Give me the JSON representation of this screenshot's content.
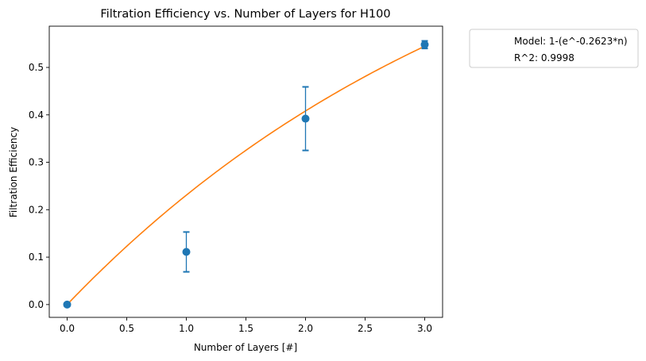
{
  "chart_data": {
    "type": "scatter",
    "title": "Filtration Efficiency vs. Number of Layers for H100",
    "xlabel": "Number of Layers [#]",
    "ylabel": "Filtration Efficiency",
    "xlim": [
      -0.15,
      3.15
    ],
    "ylim": [
      -0.027,
      0.587
    ],
    "x_ticks": [
      "0.0",
      "0.5",
      "1.0",
      "1.5",
      "2.0",
      "2.5",
      "3.0"
    ],
    "y_ticks": [
      "0.0",
      "0.1",
      "0.2",
      "0.3",
      "0.4",
      "0.5"
    ],
    "grid": false,
    "legend_position": "outside-top-right",
    "legend_entries": [
      "Model: 1-(e^-0.2623*n)",
      "R^2: 0.9998"
    ],
    "series": [
      {
        "kind": "errorbar-points",
        "color": "#1f77b4",
        "points": [
          {
            "x": 0,
            "y": 0.0,
            "err": 0.0
          },
          {
            "x": 1,
            "y": 0.111,
            "err": 0.042
          },
          {
            "x": 2,
            "y": 0.392,
            "err": 0.067
          },
          {
            "x": 3,
            "y": 0.548,
            "err": 0.008
          }
        ]
      },
      {
        "kind": "model-curve",
        "color": "#ff7f0e",
        "model_rate": 0.2623,
        "x_range": [
          0,
          3
        ]
      }
    ]
  }
}
